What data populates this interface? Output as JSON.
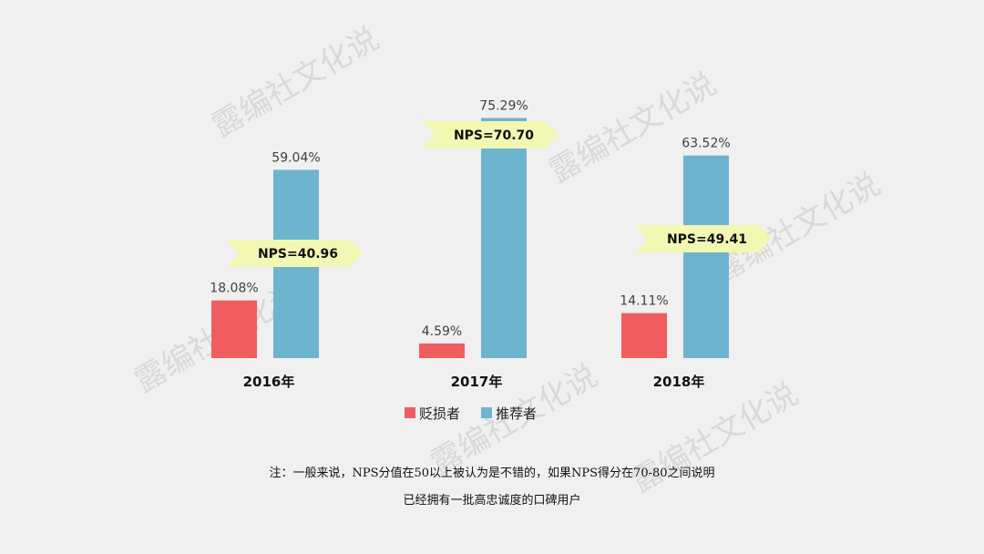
{
  "chart_data": {
    "type": "bar",
    "categories": [
      "2016年",
      "2017年",
      "2018年"
    ],
    "series": [
      {
        "name": "贬损者",
        "values": [
          18.08,
          4.59,
          14.11
        ],
        "labels": [
          "18.08%",
          "4.59%",
          "14.11%"
        ],
        "color": "#ef5d5f"
      },
      {
        "name": "推荐者",
        "values": [
          59.04,
          75.29,
          63.52
        ],
        "labels": [
          "59.04%",
          "75.29%",
          "63.52%"
        ],
        "color": "#6eb4cf"
      }
    ],
    "annotations": [
      "NPS=40.96",
      "NPS=70.70",
      "NPS=49.41"
    ],
    "annotation_color": "#f2f7b3",
    "ylim": [
      0,
      80
    ],
    "grid": false,
    "legend": "bottom-center"
  },
  "note": {
    "line1": "注：一般来说，NPS分值在50以上被认为是不错的，如果NPS得分在70-80之间说明",
    "line2": "已经拥有一批高忠诚度的口碑用户"
  },
  "watermark": "露编社文化说"
}
